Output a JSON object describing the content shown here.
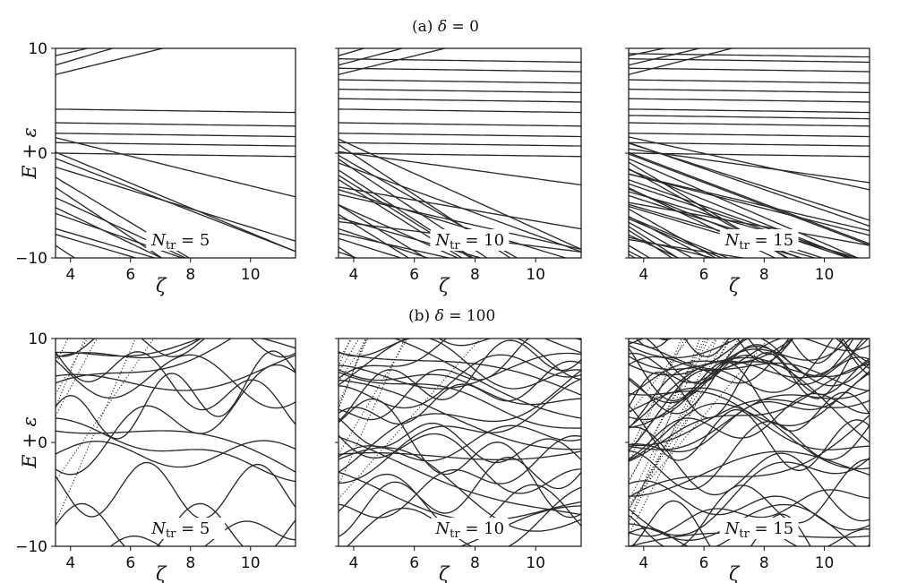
{
  "figure": {
    "row_a_title_prefix": "(a) ",
    "row_a_title_symbol": "δ",
    "row_a_title_value": " = 0",
    "row_b_title_prefix": "(b) ",
    "row_b_title_symbol": "δ",
    "row_b_title_value": " = 100"
  },
  "chart_data": [
    {
      "type": "line",
      "row": "a",
      "delta": 0,
      "ntr": 5,
      "annotation": "N_tr = 5",
      "xlabel": "ζ",
      "ylabel": "E + ε",
      "xlim": [
        3.5,
        11.5
      ],
      "ylim": [
        -10,
        10
      ],
      "xticks": [
        4,
        6,
        8,
        10
      ],
      "yticks": [
        -10,
        0,
        10
      ],
      "grid": false,
      "curves_approx": {
        "flat_levels": [
          0.0,
          1.0,
          1.9,
          2.9,
          4.2
        ],
        "rising_curves": 7,
        "falling_curves": 12
      }
    },
    {
      "type": "line",
      "row": "a",
      "delta": 0,
      "ntr": 10,
      "annotation": "N_tr = 10",
      "xlabel": "ζ",
      "ylabel": "",
      "xlim": [
        3.5,
        11.5
      ],
      "ylim": [
        -10,
        10
      ],
      "xticks": [
        4,
        6,
        8,
        10
      ],
      "yticks": [],
      "grid": false,
      "curves_approx": {
        "flat_levels": [
          0.0,
          1.0,
          1.9,
          2.9,
          4.2,
          5.2,
          6.1,
          7.0,
          8.1,
          9.0
        ],
        "rising_curves": 8,
        "falling_curves": 22
      }
    },
    {
      "type": "line",
      "row": "a",
      "delta": 0,
      "ntr": 15,
      "annotation": "N_tr = 15",
      "xlabel": "ζ",
      "ylabel": "",
      "xlim": [
        3.5,
        11.5
      ],
      "ylim": [
        -10,
        10
      ],
      "xticks": [
        4,
        6,
        8,
        10
      ],
      "yticks": [],
      "grid": false,
      "curves_approx": {
        "flat_levels": [
          0.0,
          1.0,
          1.9,
          2.9,
          3.6,
          4.2,
          5.2,
          6.1,
          7.0,
          8.1,
          9.0,
          9.5
        ],
        "rising_curves": 8,
        "falling_curves": 34
      }
    },
    {
      "type": "line",
      "row": "b",
      "delta": 100,
      "ntr": 5,
      "annotation": "N_tr = 5",
      "xlabel": "ζ",
      "ylabel": "E + ε",
      "xlim": [
        3.5,
        11.5
      ],
      "ylim": [
        -10,
        10
      ],
      "xticks": [
        4,
        6,
        8,
        10
      ],
      "yticks": [
        -10,
        0,
        10
      ],
      "grid": false,
      "curves_approx": {
        "wavy_curves": 16,
        "dotted_curves": 6
      }
    },
    {
      "type": "line",
      "row": "b",
      "delta": 100,
      "ntr": 10,
      "annotation": "N_tr = 10",
      "xlabel": "ζ",
      "ylabel": "",
      "xlim": [
        3.5,
        11.5
      ],
      "ylim": [
        -10,
        10
      ],
      "xticks": [
        4,
        6,
        8,
        10
      ],
      "yticks": [],
      "grid": false,
      "curves_approx": {
        "wavy_curves": 30,
        "dotted_curves": 10
      }
    },
    {
      "type": "line",
      "row": "b",
      "delta": 100,
      "ntr": 15,
      "annotation": "N_tr = 15",
      "xlabel": "ζ",
      "ylabel": "",
      "xlim": [
        3.5,
        11.5
      ],
      "ylim": [
        -10,
        10
      ],
      "xticks": [
        4,
        6,
        8,
        10
      ],
      "yticks": [],
      "grid": false,
      "curves_approx": {
        "wavy_curves": 44,
        "dotted_curves": 14
      }
    }
  ]
}
